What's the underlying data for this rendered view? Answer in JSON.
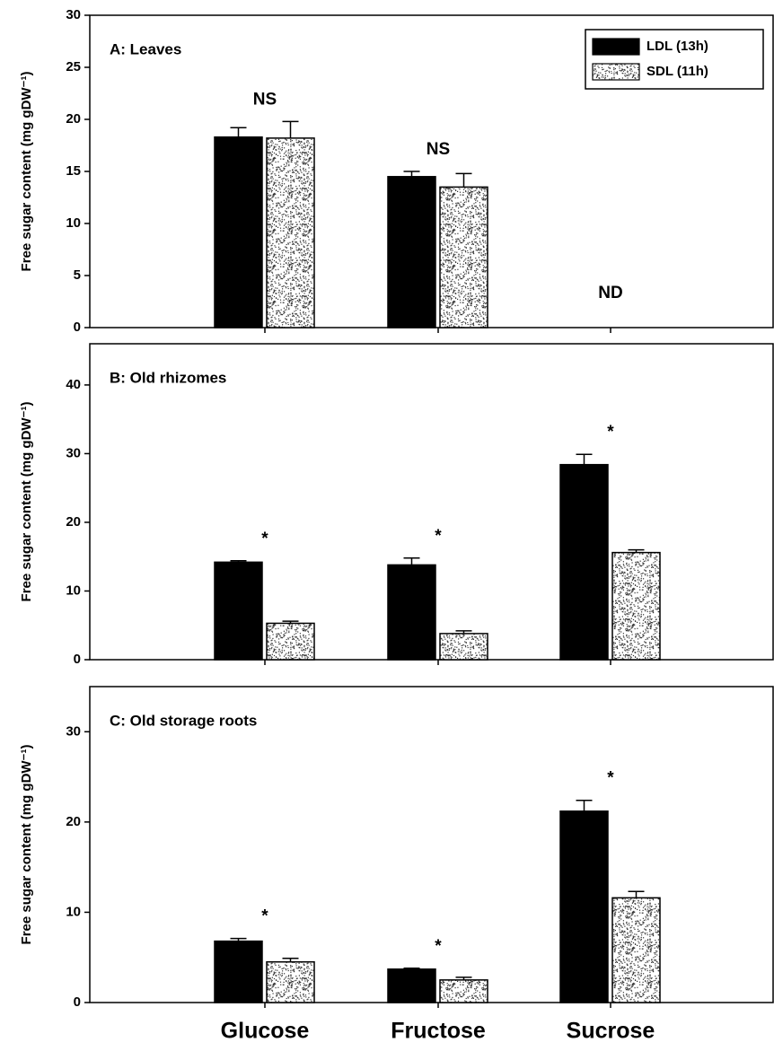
{
  "chart_data": [
    {
      "type": "bar",
      "title": "A: Leaves",
      "y_label": "Free sugar content (mg gDW⁻¹)",
      "ylim": [
        0,
        30
      ],
      "yticks": [
        0,
        5,
        10,
        15,
        20,
        25,
        30
      ],
      "legend": "upper right",
      "annotations": [
        "NS",
        "NS",
        "ND"
      ],
      "series": [
        {
          "name": "LDL (13h)",
          "color": "#000000",
          "values": [
            18.3,
            14.5,
            null
          ],
          "errors": [
            0.9,
            0.5,
            null
          ]
        },
        {
          "name": "SDL (11h)",
          "color": "stipple",
          "values": [
            18.2,
            13.5,
            null
          ],
          "errors": [
            1.6,
            1.3,
            null
          ]
        }
      ]
    },
    {
      "type": "bar",
      "title": "B: Old rhizomes",
      "y_label": "Free sugar content (mg gDW⁻¹)",
      "ylim": [
        0,
        46
      ],
      "yticks": [
        0,
        10,
        20,
        30,
        40
      ],
      "annotations": [
        "*",
        "*",
        "*"
      ],
      "series": [
        {
          "color": "#000000",
          "values": [
            14.2,
            13.8,
            28.4
          ],
          "errors": [
            0.2,
            1.0,
            1.5
          ]
        },
        {
          "color": "stipple",
          "values": [
            5.3,
            3.8,
            15.6
          ],
          "errors": [
            0.3,
            0.4,
            0.4
          ]
        }
      ]
    },
    {
      "type": "bar",
      "title": "C: Old storage roots",
      "y_label": "Free sugar content (mg gDW⁻¹)",
      "ylim": [
        0,
        35
      ],
      "yticks": [
        0,
        10,
        20,
        30
      ],
      "categories": [
        "Glucose",
        "Fructose",
        "Sucrose"
      ],
      "annotations": [
        "*",
        "*",
        "*"
      ],
      "series": [
        {
          "color": "#000000",
          "values": [
            6.8,
            3.7,
            21.2
          ],
          "errors": [
            0.3,
            0.1,
            1.2
          ]
        },
        {
          "color": "stipple",
          "values": [
            4.5,
            2.5,
            11.6
          ],
          "errors": [
            0.4,
            0.3,
            0.7
          ]
        }
      ]
    }
  ]
}
